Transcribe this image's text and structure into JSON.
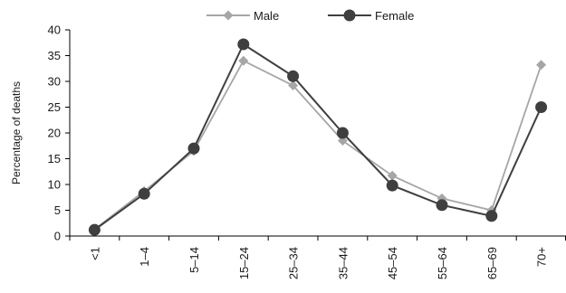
{
  "chart_data": {
    "type": "line",
    "title": "",
    "xlabel": "",
    "ylabel": "Percentage of deaths",
    "ylim": [
      0,
      40
    ],
    "yticks": [
      0,
      5,
      10,
      15,
      20,
      25,
      30,
      35,
      40
    ],
    "grid": false,
    "legend_position": "top-center",
    "categories": [
      "<1",
      "1–4",
      "5–14",
      "15–24",
      "25–34",
      "35–44",
      "45–54",
      "55–64",
      "65–69",
      "70+"
    ],
    "series": [
      {
        "name": "Male",
        "color": "#a6a6a6",
        "marker": "diamond",
        "values": [
          1.3,
          8.7,
          16.5,
          34.0,
          29.2,
          18.5,
          11.7,
          7.3,
          5.0,
          33.2
        ]
      },
      {
        "name": "Female",
        "color": "#3f3f3f",
        "marker": "circle",
        "values": [
          1.2,
          8.2,
          17.0,
          37.2,
          31.0,
          20.0,
          9.8,
          6.0,
          3.9,
          25.0
        ]
      }
    ]
  }
}
